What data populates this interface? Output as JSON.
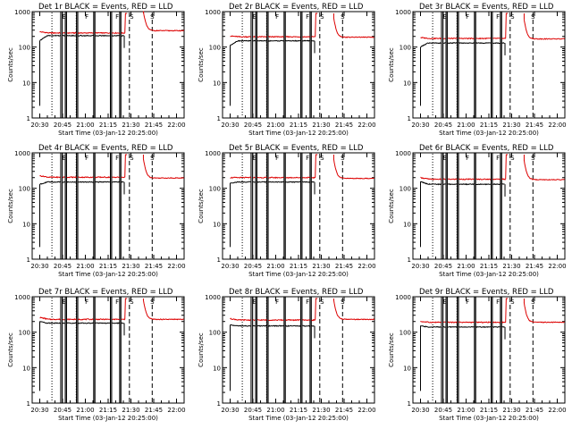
{
  "figure": {
    "background": "#ffffff",
    "events_color": "#000000",
    "lld_color": "#dd0000"
  },
  "chart_data": [
    {
      "type": "line",
      "panel": "det-1r",
      "title": "Det 1r BLACK = Events, RED = LLD",
      "ylabel": "Counts/sec",
      "xlabel": "Start Time (03-Jan-12 20:25:00)",
      "x_tick_labels": [
        "20:30",
        "20:45",
        "21:00",
        "21:15",
        "21:30",
        "21:45",
        "22:00"
      ],
      "x_ticks_min": [
        5,
        20,
        35,
        50,
        65,
        80,
        95
      ],
      "xlim_min": [
        0,
        100
      ],
      "y_scale": "log",
      "ylim": [
        1,
        1000
      ],
      "y_tick_labels": [
        "1",
        "10",
        "100",
        "1000"
      ],
      "series": [
        {
          "name": "Events",
          "color": "#000000",
          "level": 210,
          "start_level": 150
        },
        {
          "name": "LLD",
          "color": "#dd0000",
          "level": 250,
          "start_level": 270,
          "post_level": 290
        }
      ],
      "data_gaps_min": [
        [
          18.8,
          19.8
        ],
        [
          21.8,
          22.6
        ],
        [
          29.2,
          30.0
        ],
        [
          40.5,
          41.3
        ],
        [
          51.5,
          52.3
        ],
        [
          57.6,
          58.4
        ]
      ],
      "event_spike_min": 5.0,
      "rise_min": 60.6,
      "lld_jump_min": 61.0,
      "lld_end_min": 62.5,
      "second_segment_min": [
        73.2,
        100
      ],
      "dotted_lines_min": [
        13.0,
        29.0
      ],
      "dashed_lines_min": [
        64.0,
        79.0
      ],
      "flag_markers": [
        {
          "x_min": 21.0,
          "letters": "E"
        },
        {
          "x_min": 36.0,
          "letters": "F"
        },
        {
          "x_min": 56.0,
          "letters": "F"
        },
        {
          "x_min": 65.5,
          "letters": "S"
        },
        {
          "x_min": 79.0,
          "letters": "S"
        }
      ]
    },
    {
      "type": "line",
      "panel": "det-2r",
      "title": "Det 2r BLACK = Events, RED = LLD",
      "ylabel": "Counts/sec",
      "xlabel": "Start Time (03-Jan-12 20:25:00)",
      "x_tick_labels": [
        "20:30",
        "20:45",
        "21:00",
        "21:15",
        "21:30",
        "21:45",
        "22:00"
      ],
      "x_ticks_min": [
        5,
        20,
        35,
        50,
        65,
        80,
        95
      ],
      "xlim_min": [
        0,
        100
      ],
      "y_scale": "log",
      "ylim": [
        1,
        1000
      ],
      "y_tick_labels": [
        "1",
        "10",
        "100",
        "1000"
      ],
      "series": [
        {
          "name": "Events",
          "color": "#000000",
          "level": 150,
          "start_level": 110
        },
        {
          "name": "LLD",
          "color": "#dd0000",
          "level": 195,
          "start_level": 205,
          "post_level": 190
        }
      ],
      "data_gaps_min": [
        [
          18.8,
          19.8
        ],
        [
          21.8,
          22.6
        ],
        [
          29.2,
          30.0
        ],
        [
          40.5,
          41.3
        ],
        [
          51.5,
          52.3
        ],
        [
          57.6,
          58.4
        ]
      ],
      "event_spike_min": 5.0,
      "rise_min": 60.6,
      "lld_jump_min": 61.0,
      "lld_end_min": 62.5,
      "second_segment_min": [
        73.2,
        100
      ],
      "dotted_lines_min": [
        13.0,
        29.0
      ],
      "dashed_lines_min": [
        64.0,
        79.0
      ],
      "flag_markers": [
        {
          "x_min": 21.0,
          "letters": "E"
        },
        {
          "x_min": 36.0,
          "letters": "F"
        },
        {
          "x_min": 56.0,
          "letters": "F"
        },
        {
          "x_min": 65.5,
          "letters": "S"
        },
        {
          "x_min": 79.0,
          "letters": "S"
        }
      ]
    },
    {
      "type": "line",
      "panel": "det-3r",
      "title": "Det 3r BLACK = Events, RED = LLD",
      "ylabel": "Counts/sec",
      "xlabel": "Start Time (03-Jan-12 20:25:00)",
      "x_tick_labels": [
        "20:30",
        "20:45",
        "21:00",
        "21:15",
        "21:30",
        "21:45",
        "22:00"
      ],
      "x_ticks_min": [
        5,
        20,
        35,
        50,
        65,
        80,
        95
      ],
      "xlim_min": [
        0,
        100
      ],
      "y_scale": "log",
      "ylim": [
        1,
        1000
      ],
      "y_tick_labels": [
        "1",
        "10",
        "100",
        "1000"
      ],
      "series": [
        {
          "name": "Events",
          "color": "#000000",
          "level": 130,
          "start_level": 100
        },
        {
          "name": "LLD",
          "color": "#dd0000",
          "level": 175,
          "start_level": 185,
          "post_level": 170
        }
      ],
      "data_gaps_min": [
        [
          18.8,
          19.8
        ],
        [
          21.8,
          22.6
        ],
        [
          29.2,
          30.0
        ],
        [
          40.5,
          41.3
        ],
        [
          51.5,
          52.3
        ],
        [
          57.6,
          58.4
        ]
      ],
      "event_spike_min": 5.0,
      "rise_min": 60.6,
      "lld_jump_min": 61.0,
      "lld_end_min": 62.5,
      "second_segment_min": [
        73.2,
        100
      ],
      "dotted_lines_min": [
        13.0,
        29.0
      ],
      "dashed_lines_min": [
        64.0,
        79.0
      ],
      "flag_markers": [
        {
          "x_min": 21.0,
          "letters": "E"
        },
        {
          "x_min": 36.0,
          "letters": "F"
        },
        {
          "x_min": 56.0,
          "letters": "F"
        },
        {
          "x_min": 65.5,
          "letters": "S"
        },
        {
          "x_min": 79.0,
          "letters": "S"
        }
      ]
    },
    {
      "type": "line",
      "panel": "det-4r",
      "title": "Det 4r BLACK = Events, RED = LLD",
      "ylabel": "Counts/sec",
      "xlabel": "Start Time (03-Jan-12 20:25:00)",
      "x_tick_labels": [
        "20:30",
        "20:45",
        "21:00",
        "21:15",
        "21:30",
        "21:45",
        "22:00"
      ],
      "x_ticks_min": [
        5,
        20,
        35,
        50,
        65,
        80,
        95
      ],
      "xlim_min": [
        0,
        100
      ],
      "y_scale": "log",
      "ylim": [
        1,
        1000
      ],
      "y_tick_labels": [
        "1",
        "10",
        "100",
        "1000"
      ],
      "series": [
        {
          "name": "Events",
          "color": "#000000",
          "level": 150,
          "start_level": 130
        },
        {
          "name": "LLD",
          "color": "#dd0000",
          "level": 205,
          "start_level": 225,
          "post_level": 195
        }
      ],
      "data_gaps_min": [
        [
          18.8,
          19.8
        ],
        [
          21.8,
          22.6
        ],
        [
          29.2,
          30.0
        ],
        [
          40.5,
          41.3
        ],
        [
          51.5,
          52.3
        ],
        [
          57.6,
          58.4
        ]
      ],
      "event_spike_min": 5.0,
      "rise_min": 60.6,
      "lld_jump_min": 61.0,
      "lld_end_min": 62.5,
      "second_segment_min": [
        73.2,
        100
      ],
      "dotted_lines_min": [
        13.0,
        29.0
      ],
      "dashed_lines_min": [
        64.0,
        79.0
      ],
      "flag_markers": [
        {
          "x_min": 21.0,
          "letters": "E"
        },
        {
          "x_min": 36.0,
          "letters": "F"
        },
        {
          "x_min": 56.0,
          "letters": "F"
        },
        {
          "x_min": 65.5,
          "letters": "S"
        },
        {
          "x_min": 79.0,
          "letters": "S"
        }
      ]
    },
    {
      "type": "line",
      "panel": "det-5r",
      "title": "Det 5r BLACK = Events, RED = LLD",
      "ylabel": "Counts/sec",
      "xlabel": "Start Time (03-Jan-12 20:25:00)",
      "x_tick_labels": [
        "20:30",
        "20:45",
        "21:00",
        "21:15",
        "21:30",
        "21:45",
        "22:00"
      ],
      "x_ticks_min": [
        5,
        20,
        35,
        50,
        65,
        80,
        95
      ],
      "xlim_min": [
        0,
        100
      ],
      "y_scale": "log",
      "ylim": [
        1,
        1000
      ],
      "y_tick_labels": [
        "1",
        "10",
        "100",
        "1000"
      ],
      "series": [
        {
          "name": "Events",
          "color": "#000000",
          "level": 150,
          "start_level": 140
        },
        {
          "name": "LLD",
          "color": "#dd0000",
          "level": 200,
          "start_level": 200,
          "post_level": 190
        }
      ],
      "data_gaps_min": [
        [
          18.8,
          19.8
        ],
        [
          21.8,
          22.6
        ],
        [
          29.2,
          30.0
        ],
        [
          40.5,
          41.3
        ],
        [
          51.5,
          52.3
        ],
        [
          57.6,
          58.4
        ]
      ],
      "event_spike_min": 5.0,
      "rise_min": 60.6,
      "lld_jump_min": 61.0,
      "lld_end_min": 62.5,
      "second_segment_min": [
        73.2,
        100
      ],
      "dotted_lines_min": [
        13.0,
        29.0
      ],
      "dashed_lines_min": [
        64.0,
        79.0
      ],
      "flag_markers": [
        {
          "x_min": 21.0,
          "letters": "E"
        },
        {
          "x_min": 36.0,
          "letters": "F"
        },
        {
          "x_min": 56.0,
          "letters": "F"
        },
        {
          "x_min": 65.5,
          "letters": "S"
        },
        {
          "x_min": 79.0,
          "letters": "S"
        }
      ]
    },
    {
      "type": "line",
      "panel": "det-6r",
      "title": "Det 6r BLACK = Events, RED = LLD",
      "ylabel": "Counts/sec",
      "xlabel": "Start Time (03-Jan-12 20:25:00)",
      "x_tick_labels": [
        "20:30",
        "20:45",
        "21:00",
        "21:15",
        "21:30",
        "21:45",
        "22:00"
      ],
      "x_ticks_min": [
        5,
        20,
        35,
        50,
        65,
        80,
        95
      ],
      "xlim_min": [
        0,
        100
      ],
      "y_scale": "log",
      "ylim": [
        1,
        1000
      ],
      "y_tick_labels": [
        "1",
        "10",
        "100",
        "1000"
      ],
      "series": [
        {
          "name": "Events",
          "color": "#000000",
          "level": 130,
          "start_level": 155
        },
        {
          "name": "LLD",
          "color": "#dd0000",
          "level": 180,
          "start_level": 200,
          "post_level": 175
        }
      ],
      "data_gaps_min": [
        [
          18.8,
          19.8
        ],
        [
          21.8,
          22.6
        ],
        [
          29.2,
          30.0
        ],
        [
          40.5,
          41.3
        ],
        [
          51.5,
          52.3
        ],
        [
          57.6,
          58.4
        ]
      ],
      "event_spike_min": 5.0,
      "rise_min": 60.6,
      "lld_jump_min": 61.0,
      "lld_end_min": 62.5,
      "second_segment_min": [
        73.2,
        100
      ],
      "dotted_lines_min": [
        13.0,
        29.0
      ],
      "dashed_lines_min": [
        64.0,
        79.0
      ],
      "flag_markers": [
        {
          "x_min": 21.0,
          "letters": "E"
        },
        {
          "x_min": 36.0,
          "letters": "F"
        },
        {
          "x_min": 56.0,
          "letters": "F"
        },
        {
          "x_min": 65.5,
          "letters": "S"
        },
        {
          "x_min": 79.0,
          "letters": "S"
        }
      ]
    },
    {
      "type": "line",
      "panel": "det-7r",
      "title": "Det 7r BLACK = Events, RED = LLD",
      "ylabel": "Counts/sec",
      "xlabel": "Start Time (03-Jan-12 20:25:00)",
      "x_tick_labels": [
        "20:30",
        "20:45",
        "21:00",
        "21:15",
        "21:30",
        "21:45",
        "22:00"
      ],
      "x_ticks_min": [
        5,
        20,
        35,
        50,
        65,
        80,
        95
      ],
      "xlim_min": [
        0,
        100
      ],
      "y_scale": "log",
      "ylim": [
        1,
        1000
      ],
      "y_tick_labels": [
        "1",
        "10",
        "100",
        "1000"
      ],
      "series": [
        {
          "name": "Events",
          "color": "#000000",
          "level": 180,
          "start_level": 200
        },
        {
          "name": "LLD",
          "color": "#dd0000",
          "level": 230,
          "start_level": 260,
          "post_level": 230
        }
      ],
      "data_gaps_min": [
        [
          18.8,
          19.8
        ],
        [
          21.8,
          22.6
        ],
        [
          29.2,
          30.0
        ],
        [
          40.5,
          41.3
        ],
        [
          51.5,
          52.3
        ],
        [
          57.6,
          58.4
        ]
      ],
      "event_spike_min": 5.0,
      "rise_min": 60.6,
      "lld_jump_min": 61.0,
      "lld_end_min": 62.5,
      "second_segment_min": [
        73.2,
        100
      ],
      "dotted_lines_min": [
        13.0,
        29.0
      ],
      "dashed_lines_min": [
        64.0,
        79.0
      ],
      "flag_markers": [
        {
          "x_min": 21.0,
          "letters": "E"
        },
        {
          "x_min": 36.0,
          "letters": "F"
        },
        {
          "x_min": 56.0,
          "letters": "F"
        },
        {
          "x_min": 65.5,
          "letters": "S"
        },
        {
          "x_min": 79.0,
          "letters": "S"
        }
      ]
    },
    {
      "type": "line",
      "panel": "det-8r",
      "title": "Det 8r BLACK = Events, RED = LLD",
      "ylabel": "Counts/sec",
      "xlabel": "Start Time (03-Jan-12 20:25:00)",
      "x_tick_labels": [
        "20:30",
        "20:45",
        "21:00",
        "21:15",
        "21:30",
        "21:45",
        "22:00"
      ],
      "x_ticks_min": [
        5,
        20,
        35,
        50,
        65,
        80,
        95
      ],
      "xlim_min": [
        0,
        100
      ],
      "y_scale": "log",
      "ylim": [
        1,
        1000
      ],
      "y_tick_labels": [
        "1",
        "10",
        "100",
        "1000"
      ],
      "series": [
        {
          "name": "Events",
          "color": "#000000",
          "level": 150,
          "start_level": 160
        },
        {
          "name": "LLD",
          "color": "#dd0000",
          "level": 220,
          "start_level": 240,
          "post_level": 230
        }
      ],
      "data_gaps_min": [
        [
          18.8,
          19.8
        ],
        [
          21.8,
          22.6
        ],
        [
          29.2,
          30.0
        ],
        [
          40.5,
          41.3
        ],
        [
          51.5,
          52.3
        ],
        [
          57.6,
          58.4
        ]
      ],
      "event_spike_min": 5.0,
      "rise_min": 60.6,
      "lld_jump_min": 61.0,
      "lld_end_min": 62.5,
      "second_segment_min": [
        73.2,
        100
      ],
      "dotted_lines_min": [
        13.0,
        29.0
      ],
      "dashed_lines_min": [
        64.0,
        79.0
      ],
      "flag_markers": [
        {
          "x_min": 21.0,
          "letters": "E"
        },
        {
          "x_min": 36.0,
          "letters": "F"
        },
        {
          "x_min": 56.0,
          "letters": "F"
        },
        {
          "x_min": 65.5,
          "letters": "S"
        },
        {
          "x_min": 79.0,
          "letters": "S"
        }
      ]
    },
    {
      "type": "line",
      "panel": "det-9r",
      "title": "Det 9r BLACK = Events, RED = LLD",
      "ylabel": "Counts/sec",
      "xlabel": "Start Time (03-Jan-12 20:25:00)",
      "x_tick_labels": [
        "20:30",
        "20:45",
        "21:00",
        "21:15",
        "21:30",
        "21:45",
        "22:00"
      ],
      "x_ticks_min": [
        5,
        20,
        35,
        50,
        65,
        80,
        95
      ],
      "xlim_min": [
        0,
        100
      ],
      "y_scale": "log",
      "ylim": [
        1,
        1000
      ],
      "y_tick_labels": [
        "1",
        "10",
        "100",
        "1000"
      ],
      "series": [
        {
          "name": "Events",
          "color": "#000000",
          "level": 140,
          "start_level": 150
        },
        {
          "name": "LLD",
          "color": "#dd0000",
          "level": 190,
          "start_level": 200,
          "post_level": 190
        }
      ],
      "data_gaps_min": [
        [
          18.8,
          19.8
        ],
        [
          21.8,
          22.6
        ],
        [
          29.2,
          30.0
        ],
        [
          40.5,
          41.3
        ],
        [
          51.5,
          52.3
        ],
        [
          57.6,
          58.4
        ]
      ],
      "event_spike_min": 5.0,
      "rise_min": 60.6,
      "lld_jump_min": 61.0,
      "lld_end_min": 62.5,
      "second_segment_min": [
        73.2,
        100
      ],
      "dotted_lines_min": [
        13.0,
        29.0
      ],
      "dashed_lines_min": [
        64.0,
        79.0
      ],
      "flag_markers": [
        {
          "x_min": 21.0,
          "letters": "E"
        },
        {
          "x_min": 36.0,
          "letters": "F"
        },
        {
          "x_min": 56.0,
          "letters": "F"
        },
        {
          "x_min": 65.5,
          "letters": "S"
        },
        {
          "x_min": 79.0,
          "letters": "S"
        }
      ]
    }
  ]
}
